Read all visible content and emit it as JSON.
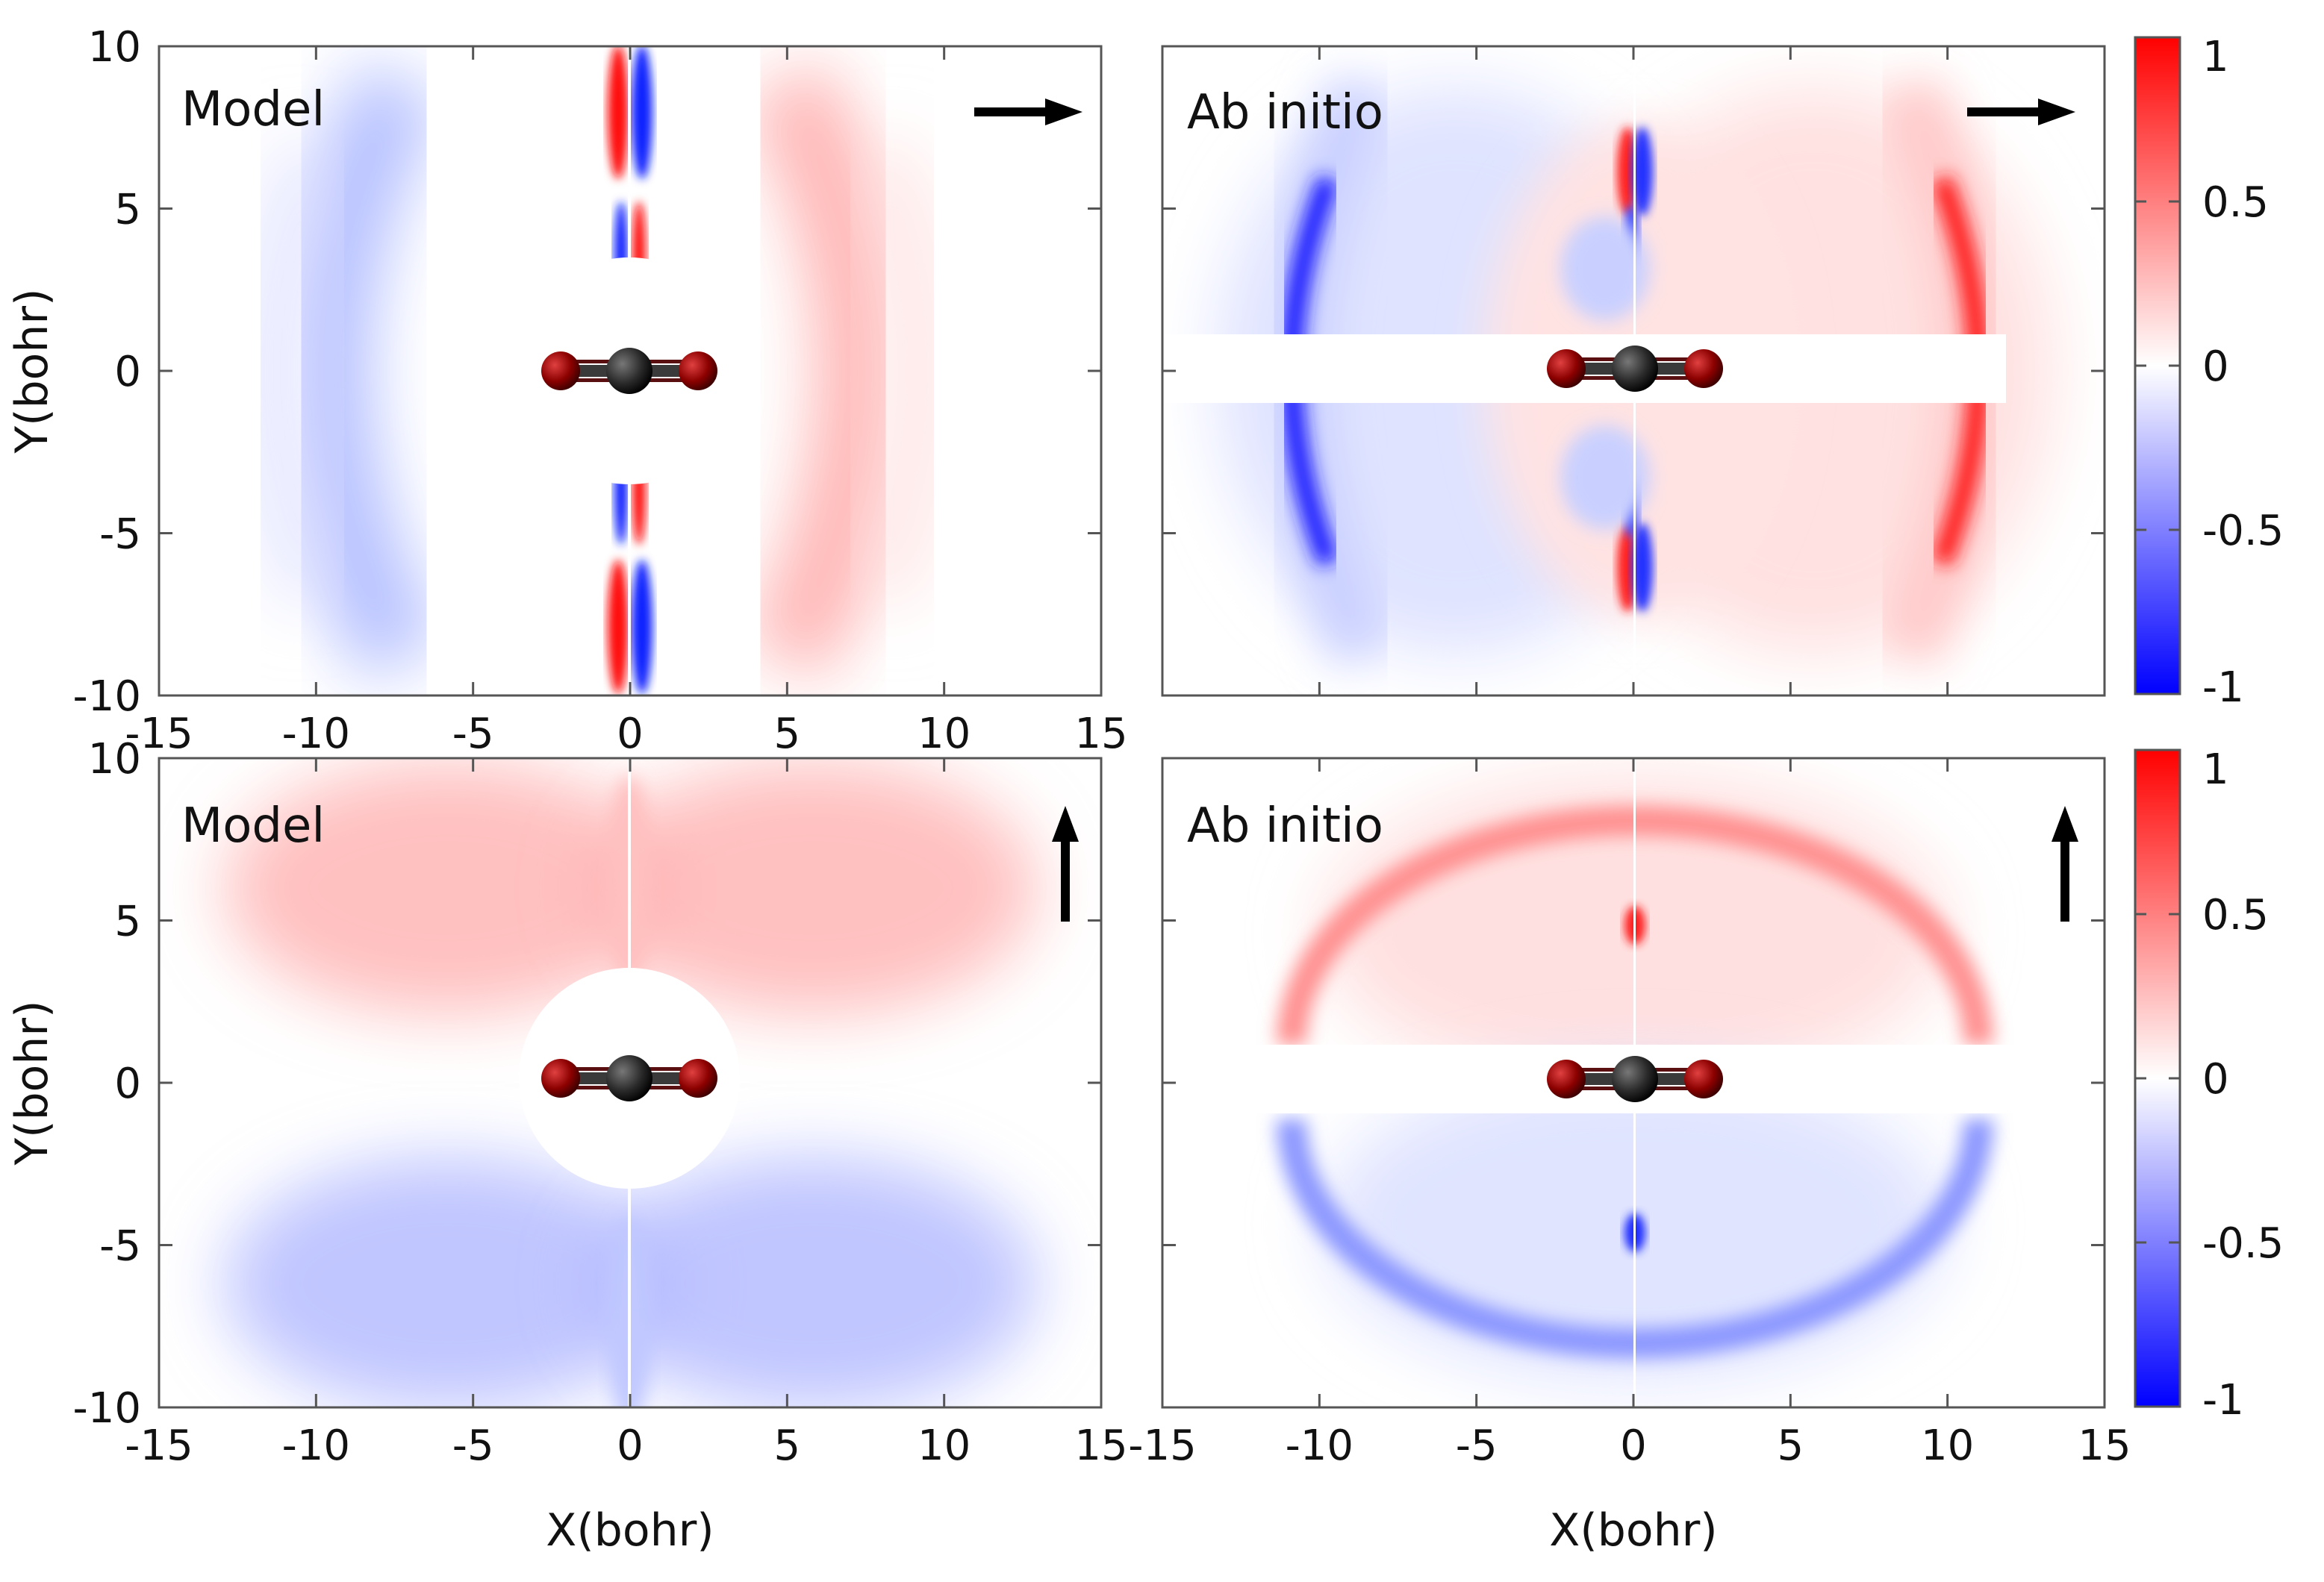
{
  "chart_data": [
    {
      "type": "heatmap",
      "panel": "top-left",
      "label": "Model",
      "field_direction": "right",
      "xlim": [
        -15,
        15
      ],
      "ylim": [
        -10,
        10
      ],
      "xticks": [
        "-15",
        "-10",
        "-5",
        "0",
        "5",
        "10",
        "15"
      ],
      "yticks": [
        "10",
        "5",
        "0",
        "-5",
        "-10"
      ],
      "ylabel": "Y(bohr)",
      "xlabel": ""
    },
    {
      "type": "heatmap",
      "panel": "top-right",
      "label": "Ab initio",
      "field_direction": "right",
      "xlim": [
        -15,
        15
      ],
      "ylim": [
        -10,
        10
      ],
      "xlabel": "",
      "ylabel": ""
    },
    {
      "type": "heatmap",
      "panel": "bottom-left",
      "label": "Model",
      "field_direction": "up",
      "xlim": [
        -15,
        15
      ],
      "ylim": [
        -10,
        10
      ],
      "xticks": [
        "-15",
        "-10",
        "-5",
        "0",
        "5",
        "10",
        "15"
      ],
      "yticks": [
        "10",
        "5",
        "0",
        "-5",
        "-10"
      ],
      "ylabel": "Y(bohr)",
      "xlabel": "X(bohr)"
    },
    {
      "type": "heatmap",
      "panel": "bottom-right",
      "label": "Ab initio",
      "field_direction": "up",
      "xlim": [
        -15,
        15
      ],
      "ylim": [
        -10,
        10
      ],
      "xticks": [
        "-15",
        "-10",
        "-5",
        "0",
        "5",
        "10",
        "15"
      ],
      "xlabel": "X(bohr)",
      "ylabel": ""
    }
  ],
  "colorbar": {
    "range": [
      -1,
      1
    ],
    "ticks": [
      "1",
      "0.5",
      "0",
      "-0.5",
      "-1"
    ],
    "colors": {
      "max": "#ff0000",
      "mid": "#ffffff",
      "min": "#0000ff"
    }
  },
  "molecule": {
    "oxygen_color": "#8b0000",
    "carbon_color": "#2a2a2a"
  }
}
